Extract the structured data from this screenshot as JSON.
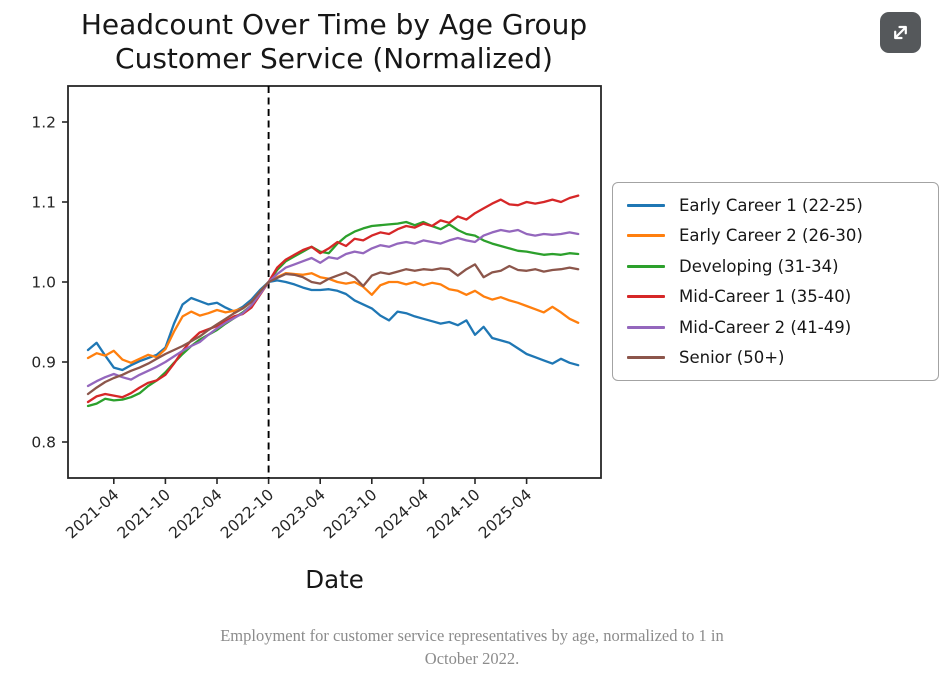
{
  "header": {
    "expand_button": {
      "icon": "expand-diagonal-arrows-icon"
    }
  },
  "caption": {
    "line1": "Employment for customer service representatives by age, normalized to 1 in",
    "line2": "October 2022.",
    "color": "#8c8c8c"
  },
  "chart_data": {
    "type": "line",
    "title_line1": "Headcount Over Time by Age Group",
    "title_line2": "Customer Service (Normalized)",
    "xlabel": "Date",
    "ylabel": "",
    "grid": false,
    "legend_position": "right",
    "ylim": [
      0.755,
      1.245
    ],
    "yticks": [
      0.8,
      0.9,
      1.0,
      1.1,
      1.2
    ],
    "xticks": [
      "2021-04",
      "2021-10",
      "2022-04",
      "2022-10",
      "2023-04",
      "2023-10",
      "2024-04",
      "2024-10",
      "2025-04"
    ],
    "vline": {
      "x": "2022-10",
      "style": "dashed",
      "color": "#000000",
      "meaning": "normalization point"
    },
    "axis_color": "#262626",
    "x": [
      "2021-01",
      "2021-02",
      "2021-03",
      "2021-04",
      "2021-05",
      "2021-06",
      "2021-07",
      "2021-08",
      "2021-09",
      "2021-10",
      "2021-11",
      "2021-12",
      "2022-01",
      "2022-02",
      "2022-03",
      "2022-04",
      "2022-05",
      "2022-06",
      "2022-07",
      "2022-08",
      "2022-09",
      "2022-10",
      "2022-11",
      "2022-12",
      "2023-01",
      "2023-02",
      "2023-03",
      "2023-04",
      "2023-05",
      "2023-06",
      "2023-07",
      "2023-08",
      "2023-09",
      "2023-10",
      "2023-11",
      "2023-12",
      "2024-01",
      "2024-02",
      "2024-03",
      "2024-04",
      "2024-05",
      "2024-06",
      "2024-07",
      "2024-08",
      "2024-09",
      "2024-10",
      "2024-11",
      "2024-12",
      "2025-01",
      "2025-02",
      "2025-03",
      "2025-04",
      "2025-05",
      "2025-06",
      "2025-07",
      "2025-08",
      "2025-09",
      "2025-10"
    ],
    "series": [
      {
        "name": "Early Career 1 (22-25)",
        "color": "#1f77b4",
        "values": [
          0.915,
          0.924,
          0.908,
          0.893,
          0.89,
          0.896,
          0.901,
          0.905,
          0.909,
          0.918,
          0.948,
          0.972,
          0.98,
          0.976,
          0.972,
          0.974,
          0.968,
          0.963,
          0.969,
          0.978,
          0.99,
          1.0,
          1.002,
          1.0,
          0.997,
          0.993,
          0.99,
          0.99,
          0.991,
          0.989,
          0.985,
          0.977,
          0.972,
          0.967,
          0.958,
          0.952,
          0.963,
          0.961,
          0.957,
          0.954,
          0.951,
          0.948,
          0.95,
          0.946,
          0.952,
          0.934,
          0.944,
          0.93,
          0.927,
          0.924,
          0.917,
          0.91,
          0.906,
          0.902,
          0.898,
          0.904,
          0.899,
          0.896
        ]
      },
      {
        "name": "Early Career 2 (26-30)",
        "color": "#ff7f0e",
        "values": [
          0.905,
          0.911,
          0.908,
          0.914,
          0.903,
          0.899,
          0.904,
          0.909,
          0.906,
          0.916,
          0.938,
          0.957,
          0.963,
          0.958,
          0.961,
          0.965,
          0.962,
          0.964,
          0.967,
          0.975,
          0.988,
          1.0,
          1.006,
          1.011,
          1.01,
          1.009,
          1.011,
          1.006,
          1.004,
          1.0,
          0.998,
          1.0,
          0.994,
          0.984,
          0.996,
          1.0,
          1.0,
          0.997,
          1.0,
          0.996,
          0.999,
          0.997,
          0.991,
          0.989,
          0.984,
          0.989,
          0.982,
          0.978,
          0.981,
          0.977,
          0.974,
          0.97,
          0.966,
          0.962,
          0.969,
          0.962,
          0.954,
          0.949
        ]
      },
      {
        "name": "Developing (31-34)",
        "color": "#2ca02c",
        "values": [
          0.845,
          0.848,
          0.854,
          0.852,
          0.853,
          0.856,
          0.861,
          0.87,
          0.877,
          0.887,
          0.899,
          0.91,
          0.92,
          0.928,
          0.934,
          0.94,
          0.948,
          0.955,
          0.962,
          0.971,
          0.985,
          1.0,
          1.015,
          1.026,
          1.032,
          1.038,
          1.044,
          1.038,
          1.036,
          1.048,
          1.057,
          1.063,
          1.067,
          1.07,
          1.071,
          1.072,
          1.073,
          1.075,
          1.071,
          1.075,
          1.07,
          1.066,
          1.072,
          1.065,
          1.06,
          1.058,
          1.052,
          1.048,
          1.045,
          1.042,
          1.039,
          1.038,
          1.036,
          1.034,
          1.035,
          1.034,
          1.036,
          1.035
        ]
      },
      {
        "name": "Mid-Career 1 (35-40)",
        "color": "#d62728",
        "values": [
          0.85,
          0.857,
          0.86,
          0.858,
          0.856,
          0.861,
          0.868,
          0.874,
          0.877,
          0.884,
          0.898,
          0.914,
          0.927,
          0.937,
          0.941,
          0.945,
          0.951,
          0.957,
          0.96,
          0.968,
          0.984,
          1.0,
          1.018,
          1.028,
          1.034,
          1.04,
          1.044,
          1.036,
          1.042,
          1.05,
          1.045,
          1.054,
          1.052,
          1.058,
          1.062,
          1.06,
          1.066,
          1.07,
          1.068,
          1.073,
          1.07,
          1.077,
          1.074,
          1.082,
          1.078,
          1.086,
          1.092,
          1.098,
          1.103,
          1.097,
          1.096,
          1.1,
          1.098,
          1.1,
          1.103,
          1.1,
          1.105,
          1.108
        ]
      },
      {
        "name": "Mid-Career 2 (41-49)",
        "color": "#9467bd",
        "values": [
          0.87,
          0.876,
          0.881,
          0.885,
          0.881,
          0.878,
          0.884,
          0.889,
          0.894,
          0.9,
          0.907,
          0.914,
          0.92,
          0.925,
          0.934,
          0.942,
          0.949,
          0.955,
          0.961,
          0.971,
          0.985,
          1.0,
          1.01,
          1.018,
          1.022,
          1.026,
          1.03,
          1.024,
          1.031,
          1.029,
          1.035,
          1.038,
          1.036,
          1.042,
          1.046,
          1.044,
          1.048,
          1.05,
          1.048,
          1.052,
          1.05,
          1.048,
          1.052,
          1.055,
          1.052,
          1.05,
          1.058,
          1.062,
          1.065,
          1.063,
          1.065,
          1.06,
          1.058,
          1.06,
          1.059,
          1.06,
          1.062,
          1.06
        ]
      },
      {
        "name": "Senior (50+)",
        "color": "#8c564b",
        "values": [
          0.86,
          0.868,
          0.875,
          0.88,
          0.884,
          0.889,
          0.893,
          0.898,
          0.904,
          0.91,
          0.915,
          0.92,
          0.926,
          0.932,
          0.94,
          0.947,
          0.954,
          0.961,
          0.967,
          0.975,
          0.988,
          1.0,
          1.005,
          1.01,
          1.009,
          1.006,
          1.0,
          0.998,
          1.004,
          1.008,
          1.012,
          1.006,
          0.995,
          1.008,
          1.012,
          1.01,
          1.013,
          1.016,
          1.014,
          1.016,
          1.015,
          1.017,
          1.016,
          1.008,
          1.016,
          1.022,
          1.006,
          1.012,
          1.014,
          1.02,
          1.015,
          1.014,
          1.016,
          1.013,
          1.015,
          1.016,
          1.018,
          1.016
        ]
      }
    ]
  }
}
